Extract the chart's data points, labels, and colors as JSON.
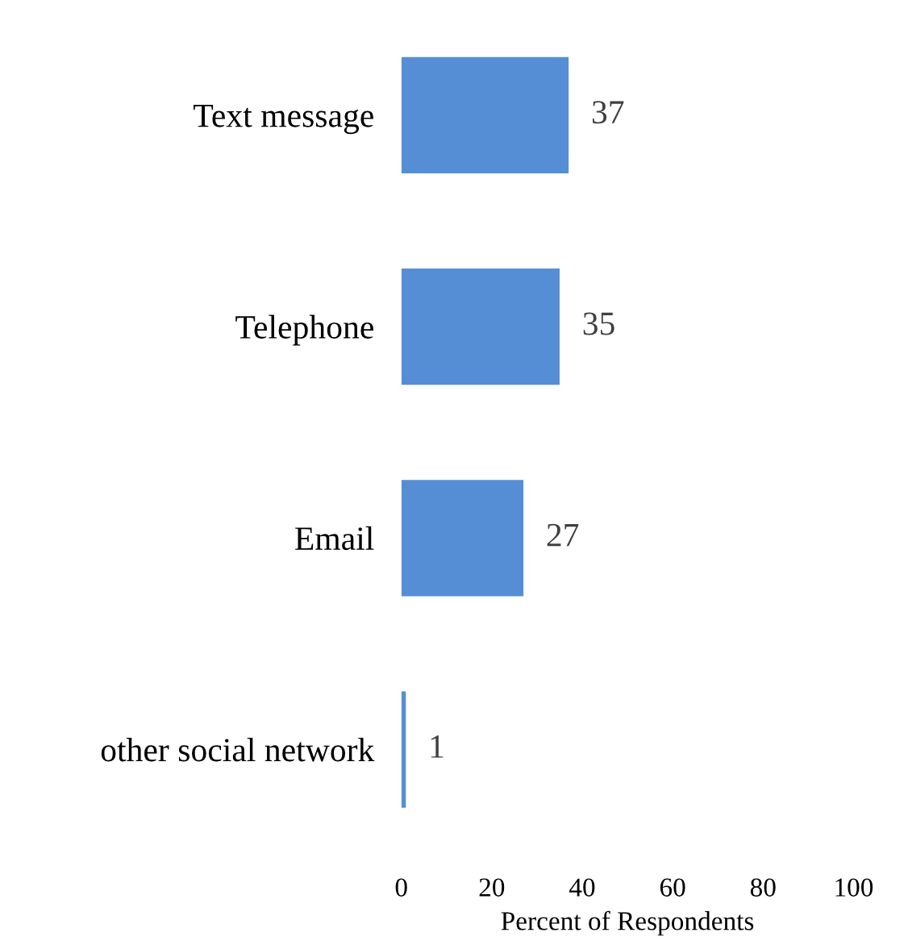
{
  "chart_data": {
    "type": "bar",
    "orientation": "horizontal",
    "xlabel": "Percent of Respondents",
    "categories": [
      "Text message",
      "Telephone",
      "Email",
      "other social network"
    ],
    "values": [
      37,
      35,
      27,
      1
    ],
    "color": "#558ed5",
    "xlim": [
      0,
      100
    ],
    "xticks": [
      0,
      20,
      40,
      60,
      80,
      100
    ],
    "grid": false,
    "data_labels": true
  }
}
